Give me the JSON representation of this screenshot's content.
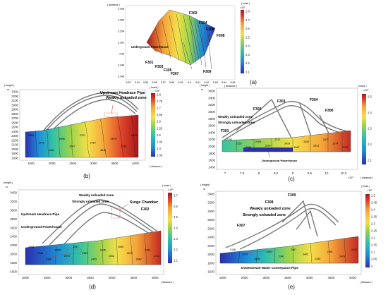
{
  "panel_a": {
    "caption": "(a)",
    "y_axis_title": "( distance )",
    "x_axis_title": "( distance )",
    "colorbar_title": "( head )",
    "colorbar_exp": "×10³",
    "colorbar_ticks": [
      "2.8",
      "2.7",
      "2.6",
      "2.5",
      "2.4",
      "2.3",
      "2.2",
      "2.1"
    ],
    "y_ticks": [
      "3.358",
      "3.356",
      "3.354",
      "3.352",
      "3.35",
      "3.348",
      "3.346"
    ],
    "x_ticks": [
      "5.53",
      "5.54",
      "5.55",
      "5.56",
      "5.57",
      "5.58",
      "5.59",
      "5.6",
      "5.61",
      "5.62",
      "5.63",
      "5.64",
      "5.65"
    ],
    "labels": {
      "f302": "F302",
      "f304": "F304",
      "f306": "F306",
      "f308": "F308",
      "f301": "F301",
      "f303": "F303",
      "f305": "F305",
      "f307": "F307",
      "f309": "F309",
      "powerhouse": "Underground Powerhouse"
    },
    "colors": [
      "#2b2fb0",
      "#1e90d8",
      "#34c3a4",
      "#9cd34a",
      "#f3e04a",
      "#f5a43a",
      "#e0452a",
      "#a8161c"
    ]
  },
  "panel_b": {
    "caption": "(b)",
    "y_axis_title": "( height )",
    "y_unit": "m",
    "x_axis_title": "( distance )",
    "colorbar_title": "( head )",
    "colorbar_exp": "×10³",
    "colorbar_ticks": [
      "2.8",
      "2.75",
      "2.7",
      "2.65",
      "2.6",
      "2.55",
      "2.5",
      "2.45",
      "2.4",
      "2.35"
    ],
    "y_ticks": [
      "3300",
      "3200",
      "3100",
      "3000",
      "2900",
      "2800",
      "2700",
      "2600",
      "2500",
      "2400",
      "2300",
      "2200",
      "2100",
      "2000",
      "1900",
      "1800"
    ],
    "x_ticks": [
      "1500",
      "2000",
      "2500",
      "3000",
      "3500",
      "4000"
    ],
    "annotation_pipe": "Upstream Headrace Pipe",
    "annotation_zone": "Weakly unloaded zone",
    "contour_values": [
      "2533",
      "2473",
      "2493",
      "2596",
      "2647",
      "2707",
      "2764",
      "2618",
      "2570",
      "2510",
      "2433"
    ]
  },
  "panel_c": {
    "caption": "(c)",
    "y_axis_title": "( height )",
    "y_unit": "m",
    "x_axis_title": "( distance )",
    "x_exp": "×10³",
    "colorbar_title": "( head )",
    "colorbar_exp": "×10³",
    "colorbar_ticks": [
      "2.5",
      "2.4",
      "2.3",
      "2.2",
      "2.1"
    ],
    "y_ticks": [
      "3600",
      "3400",
      "3200",
      "3000",
      "2800",
      "2600",
      "2400",
      "2200",
      "2000",
      "1800",
      "1600",
      "1400"
    ],
    "x_ticks": [
      "7",
      "7.5",
      "8",
      "8.5",
      "9",
      "9.5",
      "10",
      "10.5"
    ],
    "labels": {
      "f301": "F301",
      "f302": "F302",
      "f303": "F303",
      "f304": "F304",
      "f306": "F306",
      "weak": "Weakly unloaded zone",
      "strong": "Strongly unloaded zone",
      "powerhouse": "Underground Powerhouse"
    },
    "contour_values": [
      "2153",
      "2252",
      "2281",
      "2308",
      "2339",
      "2371",
      "2418",
      "2467",
      "2492",
      "2513",
      "2407",
      "2374",
      "2253"
    ]
  },
  "panel_d": {
    "caption": "(d)",
    "y_axis_title": "( height )",
    "y_unit": "m",
    "x_axis_title": "( distance )",
    "colorbar_title": "( head )",
    "colorbar_exp": "×10³",
    "colorbar_ticks": [
      "2.7",
      "2.6",
      "2.5",
      "2.4",
      "2.3",
      "2.2",
      "2.1"
    ],
    "y_ticks": [
      "3400",
      "3200",
      "3000",
      "2800",
      "2600",
      "2400",
      "2200",
      "2000",
      "1800",
      "1600"
    ],
    "x_ticks": [
      "2000",
      "2500",
      "3000",
      "3500",
      "4000",
      "4500",
      "5000"
    ],
    "labels": {
      "weak": "Weakly unloaded zone",
      "strong": "Strongly unloaded zone",
      "surge": "Surge Chamber",
      "f302": "F302",
      "pipe": "Upstream Headrace Pipe",
      "powerhouse": "Underground Powerhouse"
    },
    "contour_values": [
      "2093",
      "2145",
      "2190",
      "2233",
      "2273",
      "2317",
      "2363",
      "2405",
      "2445",
      "2502",
      "2539",
      "2613",
      "2649",
      "2689",
      "2713"
    ]
  },
  "panel_e": {
    "caption": "(e)",
    "y_axis_title": "( height )",
    "y_unit": "m",
    "x_axis_title": "( distance )",
    "colorbar_title": "( head )",
    "colorbar_exp": "×10³",
    "colorbar_ticks": [
      "2.5",
      "2.45",
      "2.4",
      "2.35",
      "2.3",
      "2.25",
      "2.2",
      "2.15",
      "2.1",
      "2.05",
      "2"
    ],
    "y_ticks": [
      "3400",
      "3200",
      "3000",
      "2800",
      "2600",
      "2400",
      "2200",
      "2000",
      "1800",
      "1600"
    ],
    "x_ticks": [
      "2000",
      "2500",
      "3000",
      "3500",
      "4000",
      "4500",
      "5000"
    ],
    "labels": {
      "f309": "F309",
      "f308": "F308",
      "weak": "Weakly unloaded zone",
      "strong": "Strongly unloaded zone",
      "f307": "F307",
      "pipe": "Downstream Water Conveyance Pipe"
    },
    "contour_values": [
      "2156",
      "2209",
      "2265",
      "2303",
      "2341",
      "2367",
      "2403",
      "2432",
      "2451",
      "2478",
      "2512"
    ]
  }
}
